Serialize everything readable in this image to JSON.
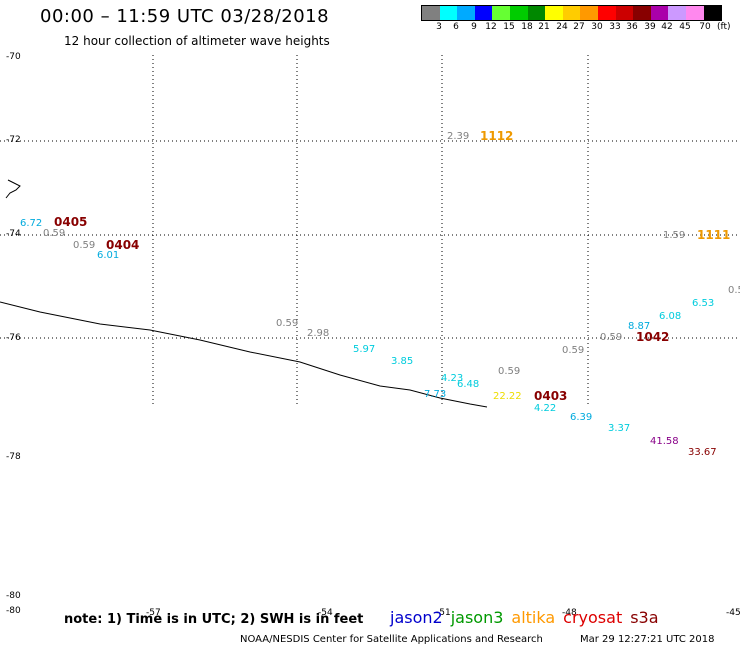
{
  "header": {
    "title": "00:00 – 11:59 UTC 03/28/2018",
    "subtitle": "12 hour collection of altimeter wave heights"
  },
  "colorbar": {
    "colors": [
      "#808080",
      "#00ffff",
      "#00aaff",
      "#0000ff",
      "#66ff33",
      "#00cc00",
      "#008800",
      "#ffff00",
      "#ffcc00",
      "#ff9900",
      "#ff0000",
      "#cc0000",
      "#880000",
      "#aa00aa",
      "#cc99ff",
      "#ff88ee",
      "#000000"
    ],
    "labels": [
      "3",
      "6",
      "9",
      "12",
      "15",
      "18",
      "21",
      "24",
      "27",
      "30",
      "33",
      "36",
      "39",
      "42",
      "45",
      "70"
    ],
    "unit": "(ft)"
  },
  "axes": {
    "lat_labels": [
      "-70",
      "-72",
      "-74",
      "-76",
      "-78",
      "-80",
      "-80"
    ],
    "lon_labels": [
      "-57",
      "-54",
      "-51",
      "-48",
      "-45"
    ]
  },
  "wave_heights": [
    {
      "text": "6.72",
      "color": "#00aadd"
    },
    {
      "text": "0.59",
      "color": "#808080"
    },
    {
      "text": "0.59",
      "color": "#808080"
    },
    {
      "text": "6.01",
      "color": "#00aadd"
    },
    {
      "text": "2.39",
      "color": "#808080"
    },
    {
      "text": "1.59",
      "color": "#808080"
    },
    {
      "text": "0.59",
      "color": "#808080"
    },
    {
      "text": "2.98",
      "color": "#808080"
    },
    {
      "text": "5.97",
      "color": "#00ccdd"
    },
    {
      "text": "3.85",
      "color": "#00ccdd"
    },
    {
      "text": "4.23",
      "color": "#00ccdd"
    },
    {
      "text": "6.48",
      "color": "#00ccdd"
    },
    {
      "text": "7.73",
      "color": "#00aadd"
    },
    {
      "text": "0.59",
      "color": "#808080"
    },
    {
      "text": "22.22",
      "color": "#eedd00"
    },
    {
      "text": "4.22",
      "color": "#00ccdd"
    },
    {
      "text": "6.39",
      "color": "#00aadd"
    },
    {
      "text": "3.37",
      "color": "#00ccdd"
    },
    {
      "text": "0.59",
      "color": "#808080"
    },
    {
      "text": "0.59",
      "color": "#808080"
    },
    {
      "text": "8.87",
      "color": "#00aadd"
    },
    {
      "text": "6.08",
      "color": "#00ccdd"
    },
    {
      "text": "6.53",
      "color": "#00ccdd"
    },
    {
      "text": "0.5",
      "color": "#808080"
    },
    {
      "text": "41.58",
      "color": "#880088"
    },
    {
      "text": "33.67",
      "color": "#880000"
    }
  ],
  "time_labels": [
    {
      "text": "0405",
      "color": "#880000"
    },
    {
      "text": "0404",
      "color": "#880000"
    },
    {
      "text": "1112",
      "color": "#ee9900"
    },
    {
      "text": "1111",
      "color": "#ee9900"
    },
    {
      "text": "0403",
      "color": "#880000"
    },
    {
      "text": "1042",
      "color": "#880000"
    }
  ],
  "footer": {
    "note": "note: 1) Time is in UTC; 2) SWH is in feet",
    "legend": [
      {
        "name": "jason2",
        "color": "#0000cc"
      },
      {
        "name": "jason3",
        "color": "#009900"
      },
      {
        "name": "altika",
        "color": "#ff9900"
      },
      {
        "name": "cryosat",
        "color": "#dd0000"
      },
      {
        "name": "s3a",
        "color": "#880000"
      }
    ],
    "credit": "NOAA/NESDIS Center for Satellite Applications and Research",
    "timestamp": "Mar 29 12:27:21 UTC 2018"
  }
}
